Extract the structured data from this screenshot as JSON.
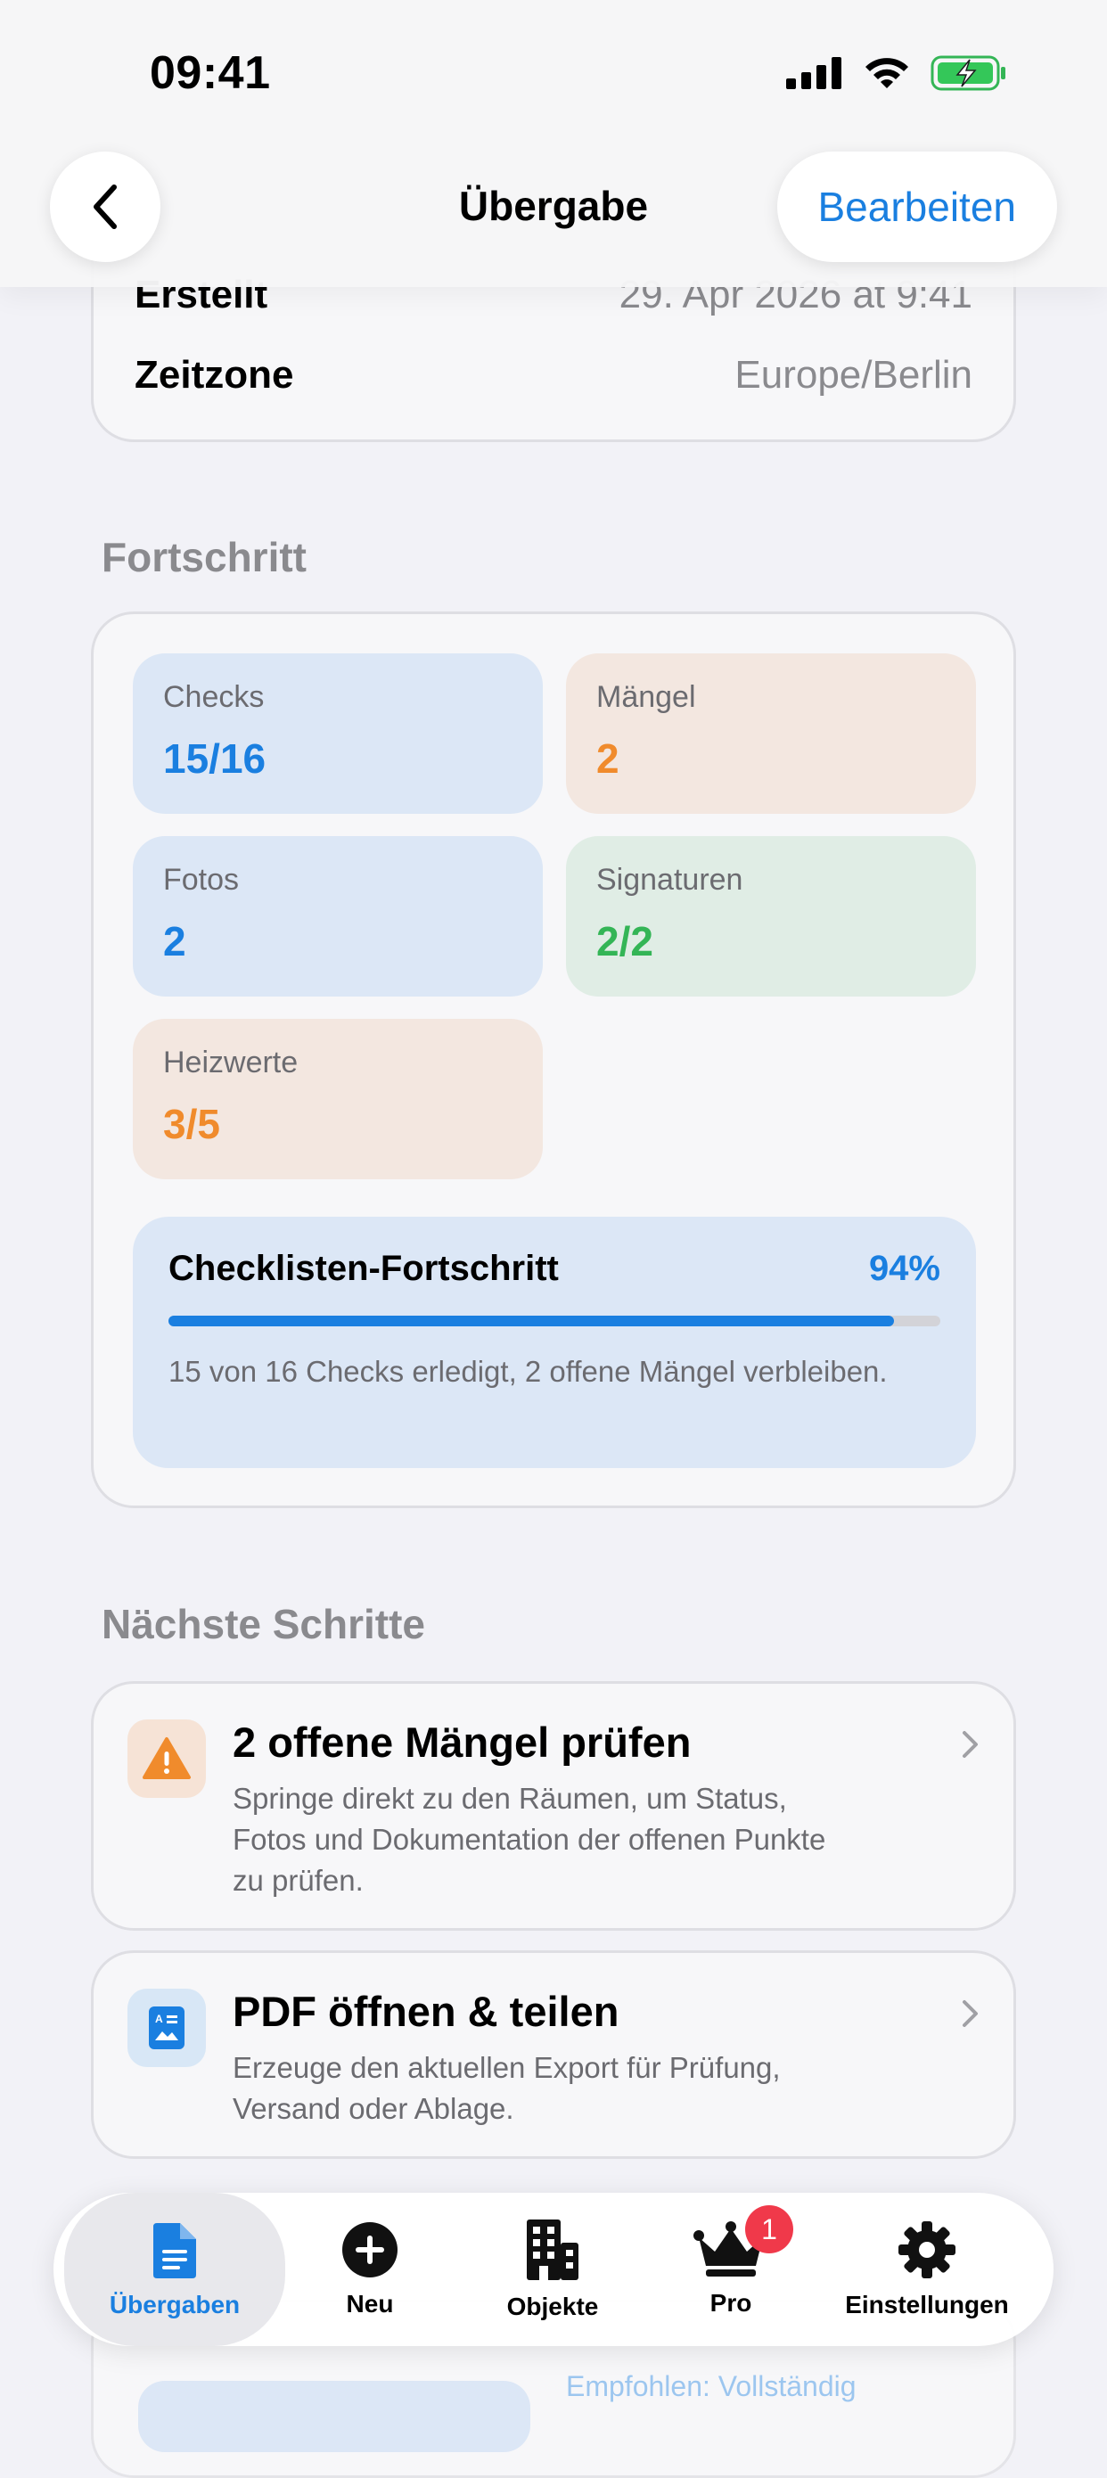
{
  "status_bar": {
    "time": "09:41"
  },
  "nav": {
    "title": "Übergabe",
    "edit_label": "Bearbeiten"
  },
  "info": {
    "created_label": "Erstellt",
    "created_value": "29. Apr 2026 at 9:41",
    "timezone_label": "Zeitzone",
    "timezone_value": "Europe/Berlin"
  },
  "progress": {
    "section_title": "Fortschritt",
    "tiles": [
      {
        "label": "Checks",
        "value": "15/16",
        "color": "#1a7fe0"
      },
      {
        "label": "Mängel",
        "value": "2",
        "color": "#f08b2c"
      },
      {
        "label": "Fotos",
        "value": "2",
        "color": "#1a7fe0"
      },
      {
        "label": "Signaturen",
        "value": "2/2",
        "color": "#34b556"
      },
      {
        "label": "Heizwerte",
        "value": "3/5",
        "color": "#f08b2c"
      }
    ],
    "checklist": {
      "title": "Checklisten-Fortschritt",
      "percent_label": "94%",
      "percent": 0.94,
      "description": "15 von 16 Checks erledigt, 2 offene Mängel verbleiben."
    }
  },
  "next_steps": {
    "section_title": "Nächste Schritte",
    "items": [
      {
        "title": "2 offene Mängel prüfen",
        "description": "Springe direkt zu den Räumen, um Status, Fotos und Dokumentation der offenen Punkte zu prüfen.",
        "icon": "warning-icon"
      },
      {
        "title": "PDF öffnen & teilen",
        "description": "Erzeuge den aktuellen Export für Prüfung, Versand oder Ablage.",
        "icon": "document-icon"
      }
    ]
  },
  "peek": {
    "text": "Empfohlen: Vollständig"
  },
  "tabbar": {
    "tabs": [
      {
        "label": "Übergaben",
        "icon": "document-icon",
        "active": true
      },
      {
        "label": "Neu",
        "icon": "plus-circle-icon"
      },
      {
        "label": "Objekte",
        "icon": "building-icon"
      },
      {
        "label": "Pro",
        "icon": "crown-icon",
        "badge": "1"
      },
      {
        "label": "Einstellungen",
        "icon": "gear-icon"
      }
    ]
  },
  "colors": {
    "accent": "#1a7fe0",
    "warning": "#f08b2c",
    "success": "#34b556",
    "badge": "#f0394a"
  }
}
